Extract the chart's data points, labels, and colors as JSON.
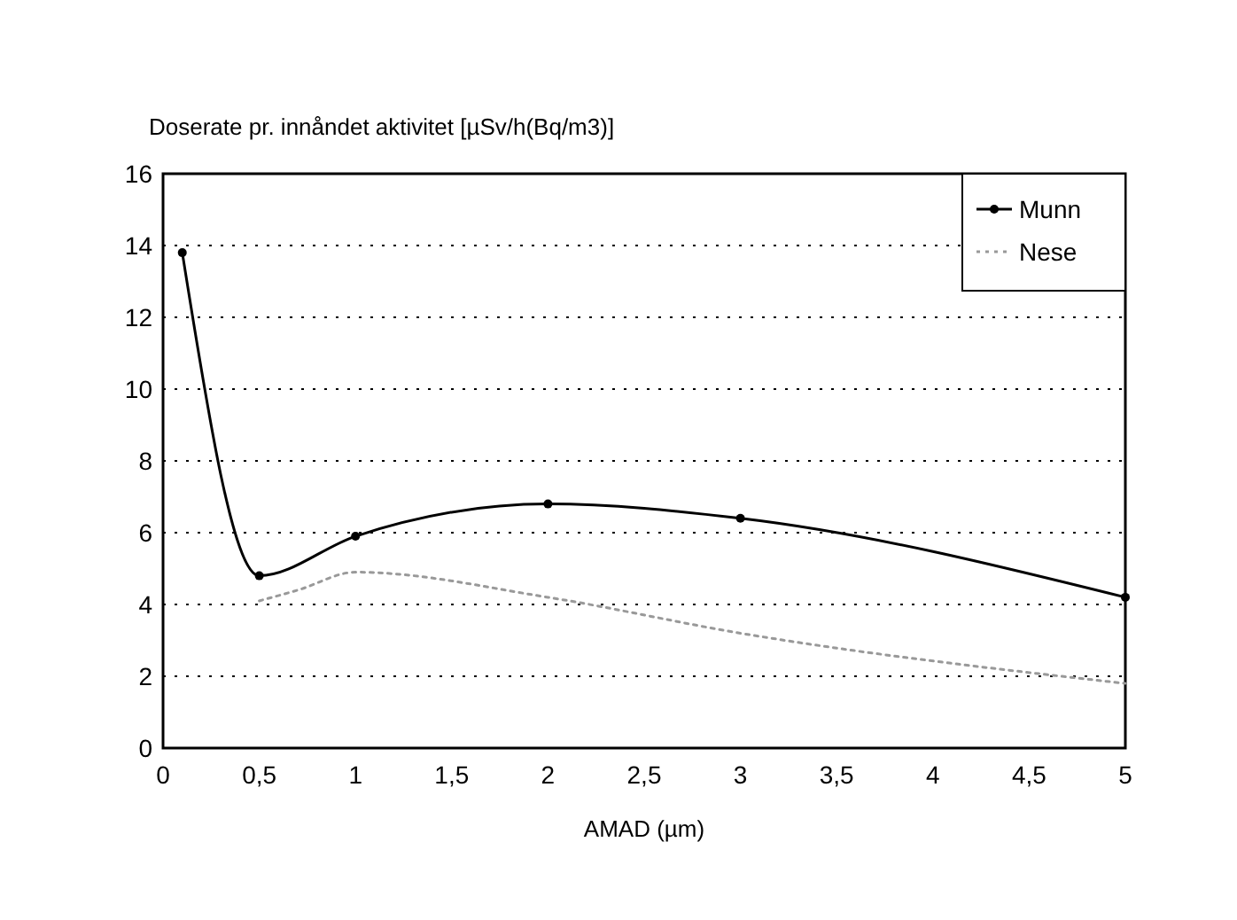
{
  "chart_data": {
    "type": "line",
    "title": "Doserate pr. innåndet aktivitet [µSv/h(Bq/m3)]",
    "xlabel": "AMAD (µm)",
    "series": [
      {
        "name": "Munn",
        "color": "#000000",
        "x": [
          0.1,
          0.5,
          1,
          2,
          3,
          5
        ],
        "values": [
          13.8,
          4.8,
          5.9,
          6.8,
          6.4,
          4.2
        ],
        "marker": "circle",
        "line_style": "solid"
      },
      {
        "name": "Nese",
        "color": "#999999",
        "x": [
          0.5,
          0.7,
          1,
          2,
          3,
          5
        ],
        "values": [
          4.1,
          4.4,
          4.9,
          4.2,
          3.2,
          1.8
        ],
        "marker": "none",
        "line_style": "dotted"
      }
    ],
    "xlim": [
      0,
      5
    ],
    "xticks": [
      0,
      {
        "value": 0.5,
        "label": "0,5"
      },
      1,
      {
        "value": 1.5,
        "label": "1,5"
      },
      2,
      {
        "value": 2.5,
        "label": "2,5"
      },
      3,
      {
        "value": 3.5,
        "label": "3,5"
      },
      4,
      {
        "value": 4.5,
        "label": "4,5"
      },
      5
    ],
    "ylim": [
      0,
      16
    ],
    "yticks": [
      0,
      2,
      4,
      6,
      8,
      10,
      12,
      14,
      16
    ],
    "grid": "y",
    "legend": "top right"
  }
}
